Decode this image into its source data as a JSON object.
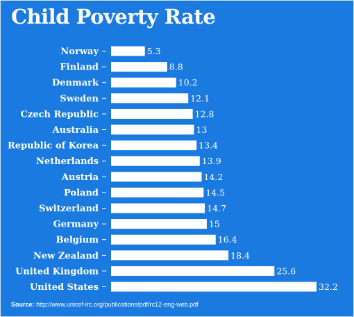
{
  "chart_data": {
    "type": "bar",
    "orientation": "horizontal",
    "title": "Child Poverty Rate",
    "categories": [
      "Norway",
      "Finland",
      "Denmark",
      "Sweden",
      "Czech Republic",
      "Australia",
      "Republic of Korea",
      "Netherlands",
      "Austria",
      "Poland",
      "Switzerland",
      "Germany",
      "Belgium",
      "New Zealand",
      "United Kingdom",
      "United States"
    ],
    "value_labels": [
      "5.3",
      "8.8",
      "10.2",
      "12.1",
      "12.8",
      "13",
      "13.4",
      "13.9",
      "14.2",
      "14.5",
      "14.7",
      "15",
      "16.4",
      "18.4",
      "25.6",
      "32.2"
    ],
    "values": [
      5.3,
      8.8,
      10.2,
      12.1,
      12.8,
      13.0,
      13.4,
      13.9,
      14.2,
      14.5,
      14.7,
      15.0,
      16.4,
      18.4,
      25.6,
      32.2
    ],
    "xlim": [
      0,
      32.2
    ],
    "colors": {
      "background": "#1a7ae0",
      "bar": "#ffffff",
      "text": "#ffffff"
    }
  },
  "source": {
    "label": "Source:",
    "url": "http://www.unicef-irc.org/publications/pdf/rc12-eng-web.pdf"
  }
}
